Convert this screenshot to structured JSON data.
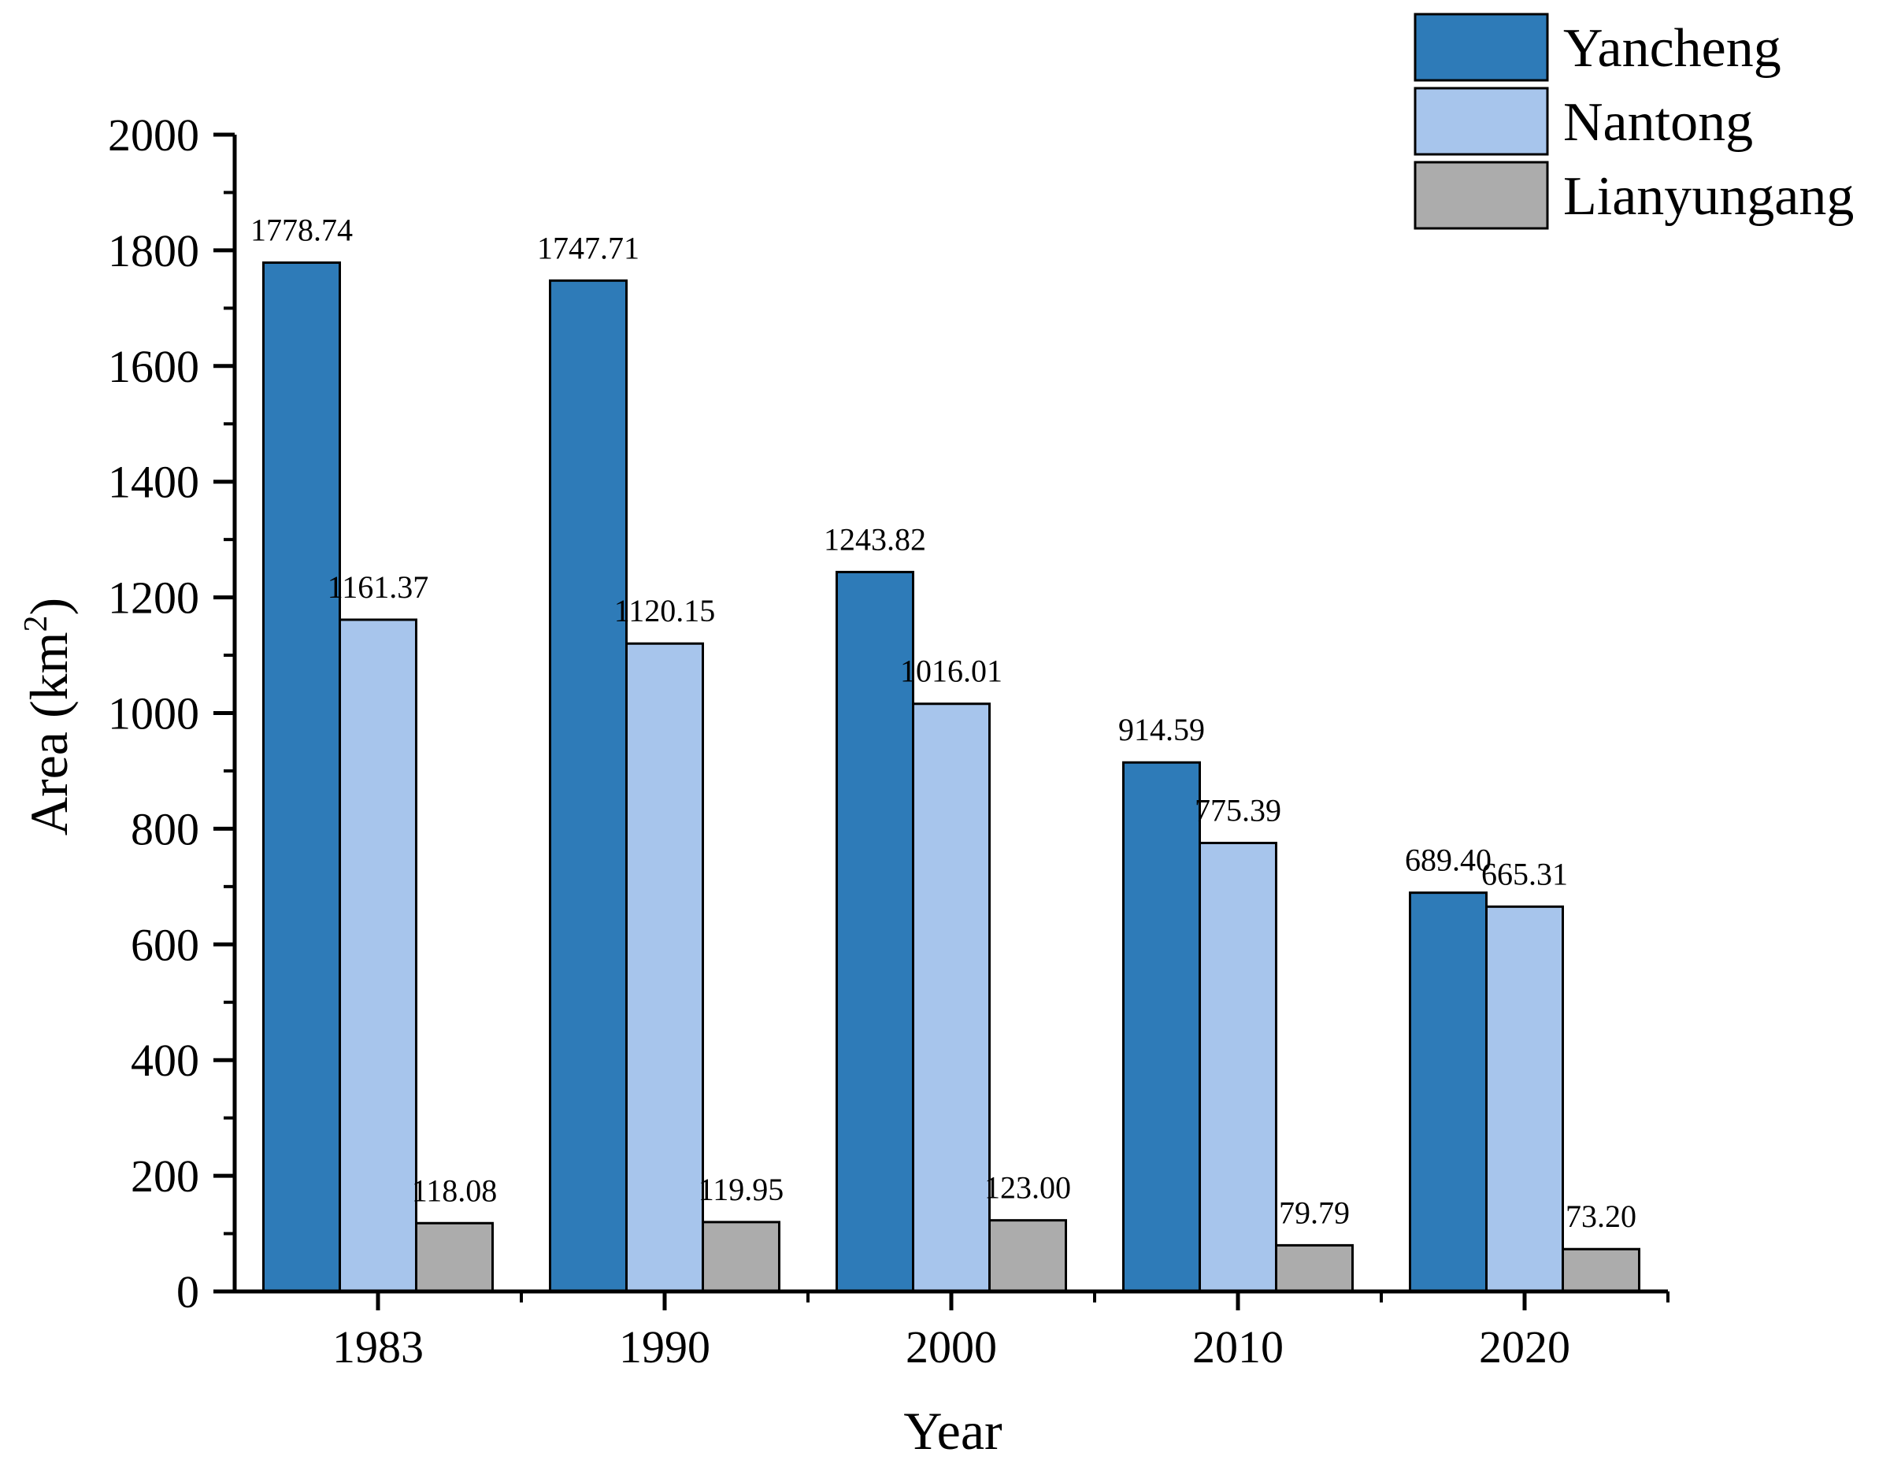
{
  "chart_data": {
    "type": "bar",
    "title": "",
    "xlabel": "Year",
    "ylabel": "Area (km",
    "ylabel_sup": "2",
    "ylabel_close": ")",
    "ylim": [
      0,
      2000
    ],
    "ytick_step": 200,
    "yticks": [
      "0",
      "200",
      "400",
      "600",
      "800",
      "1000",
      "1200",
      "1400",
      "1600",
      "1800",
      "2000"
    ],
    "categories": [
      "1983",
      "1990",
      "2000",
      "2010",
      "2020"
    ],
    "legend_position": "top-right",
    "series": [
      {
        "name": "Yancheng",
        "color": "#2e7bb8",
        "values": [
          1778.74,
          1747.71,
          1243.82,
          914.59,
          689.4
        ],
        "labels": [
          "1778.74",
          "1747.71",
          "1243.82",
          "914.59",
          "689.40"
        ]
      },
      {
        "name": "Nantong",
        "color": "#a7c5ec",
        "values": [
          1161.37,
          1120.15,
          1016.01,
          775.39,
          665.31
        ],
        "labels": [
          "1161.37",
          "1120.15",
          "1016.01",
          "775.39",
          "665.31"
        ]
      },
      {
        "name": "Lianyungang",
        "color": "#acacac",
        "values": [
          118.08,
          119.95,
          123.0,
          79.79,
          73.2
        ],
        "labels": [
          "118.08",
          "119.95",
          "123.00",
          "79.79",
          "73.20"
        ]
      }
    ]
  }
}
